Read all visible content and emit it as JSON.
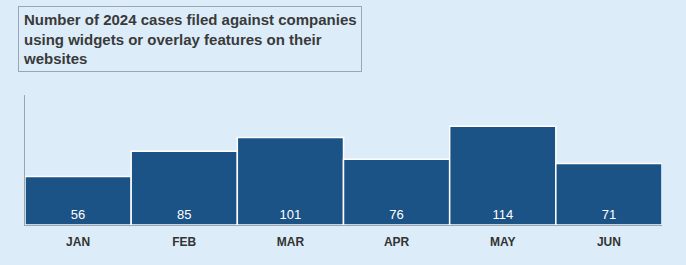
{
  "chart_data": {
    "type": "bar",
    "title": "Number of 2024 cases filed against companies using widgets or overlay features on their websites",
    "categories": [
      "JAN",
      "FEB",
      "MAR",
      "APR",
      "MAY",
      "JUN"
    ],
    "values": [
      56,
      85,
      101,
      76,
      114,
      71
    ],
    "color": "#1b5386",
    "ylim": [
      0,
      150
    ],
    "data_labels": true,
    "tick_labels": "x",
    "grid": false
  }
}
